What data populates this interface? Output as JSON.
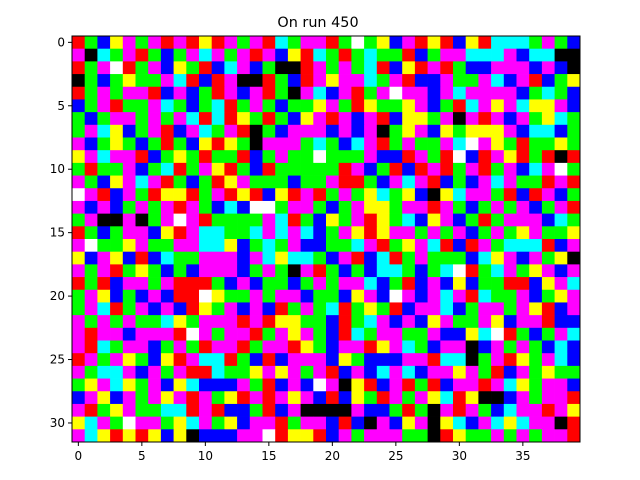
{
  "chart_data": {
    "type": "heatmap",
    "title": "On run 450",
    "xlabel": "",
    "ylabel": "",
    "n_cols": 40,
    "n_rows": 32,
    "x_ticks": [
      0,
      5,
      10,
      15,
      20,
      25,
      30,
      35
    ],
    "y_ticks": [
      0,
      5,
      10,
      15,
      20,
      25,
      30
    ],
    "xlim": [
      -0.5,
      39.5
    ],
    "ylim": [
      31.5,
      -0.5
    ],
    "grid": false,
    "legend": "none",
    "palette": {
      "K": "#000000",
      "R": "#ff0000",
      "G": "#00ff00",
      "B": "#0000ff",
      "C": "#00ffff",
      "M": "#ff00ff",
      "Y": "#ffff00",
      "W": "#ffffff"
    },
    "rows": [
      "RGBYMGMRMRYRMGMRCGMMRGWGYBMRYRBYRCCCGMGB",
      "MKCGMRGBGMCMGMRMBYRCGRGCGGRBGMMCCCMBCCKK",
      "RGMWRGMBYGRBCMBGKKRMGMGCRBYRMRGBBMMMBMBK",
      "KGBGYGGMCRBRMKKRGBRMYMMCGMRBBMGGMCBMRBGY",
      "RGMGMMRBMBGRMBMRGKMCBMRGMWMMBMCMMMMBGCGB",
      "BGMRGGMCGBGCRGMGBGGYMGRYGGYMBGRCMYMCYYMB",
      "GBGMMGMGMCRCRYGRGBYMRMBMRBYYGMKMRMBMGYCG",
      "GMCYBGMRBMCGMRKGBMMMBMBMKGYMBYGYYYMBCCBG",
      "MBGYGBGRGBYRYGKMMMGCGBCMRGMGGMCWMYGRGGYG",
      "YMCMMRBGYGRGGRBGMGGWGGGMBBRMGRWBRMYRGRKR",
      "GRGGMBGCRGMYRGBRGGGGGRMBGRBRMRGMRGMBCMWG",
      "MGBYMCMRGBGRYMGGGBGGMRRGBMCMRBGBMCMGGRMR",
      "WMRBMGRYYRGMRYRBYRMRGMGYCGYBKYCMMGRBRMBG",
      "MBMBGMGMRMGBCBWWGMMGBGMYYGMMRMGBGMGMBGMR",
      "GMKKMKGMWMRGGGGMCRGBYGMRYGCBYMBGRGMMMBCG",
      "RGBGMMBYRMCCGGCMCMCBGMYRYMMGMGMBGMGYMGGY",
      "MWGGYMGGMMCCYBGCGMBBGGCMRGYMCRBRMGCCCRBM",
      "YBMYBRBCGGMMMBMCYCCGBMRBCRGMGGGBCYMBMGYK",
      "MGMRGYGBGBMMMBGMGKMRGBGBCCGBGCWRGCMGYMBM",
      "RGRBMMGMRRRGBMBGGBGMGMMCBGRBMBYBGGRRBYMC",
      "GMYBGBMBRRWYGGMGMMBGGBYMBWMBMCMRCGGMBGYM",
      "GMCRGMBMBRYGMBMBRGMGCRGYGRBMMCBGMMGMYRBM",
      "MGMGMGGCYGMMMRMRYYGGBRGCMBMBYMGGMYBMMRBB",
      "MRMMBMMMRWMGMMRGMYMGBRCGMMGGMBBYCWRGBGMC",
      "MRCGMMBGMGRMMRGMMRYGBMMRYMCGBMMKBMGMGBCB",
      "RMGMYGBYRMCCRGBRBMMMBYGBBBMMRCCKGMRYGMCB",
      "MGCCMBMGMRRCGGYMYMGMRBMBCMCBMMYMGRBMGYGG",
      "GYMCYGMBYCBBBMGRBMBWMKYRBMRGRBMMRMCYGMMB",
      "BMYBMGMYMRMGYRMRMYMBRBYGRMGMYCRYKKBMGMMR",
      "MRGYMGGCCRMRBBGRBMKKKKMBBGRGKMRMGBCMMRMY",
      "YCMGWMMGYCMGYBMMRGMMBRBKMBYMKYCBMCYCMMKR",
      "MCYRYRYBYKBBBMMWRYYRBMGMMMGGKRYGGMGMGMMR"
    ]
  }
}
